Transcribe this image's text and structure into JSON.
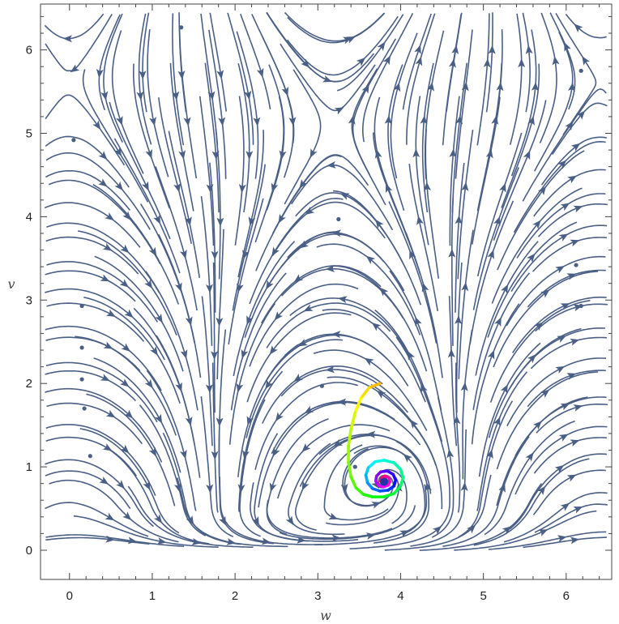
{
  "chart_data": {
    "type": "streamplot",
    "title": "",
    "xlabel": "w",
    "ylabel": "v",
    "xlim": [
      -0.35,
      6.55
    ],
    "ylim": [
      -0.35,
      6.55
    ],
    "xticks": [
      "0",
      "1",
      "2",
      "3",
      "4",
      "5",
      "6"
    ],
    "yticks": [
      "0",
      "1",
      "2",
      "3",
      "4",
      "5",
      "6"
    ],
    "grid": false,
    "frame": true,
    "stream_color": "#4a5f86",
    "equilibrium": [
      3.8,
      0.82
    ],
    "trajectory": {
      "start": [
        3.75,
        2.0
      ],
      "coloring": "rainbow-hue",
      "points": [
        [
          3.75,
          2.0
        ],
        [
          3.62,
          1.95
        ],
        [
          3.52,
          1.82
        ],
        [
          3.45,
          1.65
        ],
        [
          3.4,
          1.45
        ],
        [
          3.37,
          1.25
        ],
        [
          3.37,
          1.05
        ],
        [
          3.4,
          0.88
        ],
        [
          3.46,
          0.75
        ],
        [
          3.55,
          0.67
        ],
        [
          3.66,
          0.64
        ],
        [
          3.8,
          0.64
        ],
        [
          3.92,
          0.68
        ],
        [
          4.0,
          0.77
        ],
        [
          4.03,
          0.87
        ],
        [
          4.0,
          0.97
        ],
        [
          3.92,
          1.05
        ],
        [
          3.8,
          1.08
        ],
        [
          3.69,
          1.06
        ],
        [
          3.61,
          0.99
        ],
        [
          3.58,
          0.9
        ],
        [
          3.6,
          0.81
        ],
        [
          3.66,
          0.74
        ],
        [
          3.75,
          0.71
        ],
        [
          3.85,
          0.72
        ],
        [
          3.92,
          0.77
        ],
        [
          3.94,
          0.84
        ],
        [
          3.91,
          0.91
        ],
        [
          3.84,
          0.95
        ],
        [
          3.76,
          0.94
        ],
        [
          3.71,
          0.89
        ],
        [
          3.7,
          0.83
        ],
        [
          3.73,
          0.78
        ],
        [
          3.79,
          0.76
        ],
        [
          3.85,
          0.78
        ],
        [
          3.87,
          0.82
        ],
        [
          3.86,
          0.87
        ],
        [
          3.81,
          0.89
        ],
        [
          3.77,
          0.87
        ],
        [
          3.76,
          0.83
        ],
        [
          3.78,
          0.8
        ],
        [
          3.81,
          0.8
        ],
        [
          3.82,
          0.83
        ],
        [
          3.8,
          0.84
        ]
      ]
    },
    "stream_dots": [
      [
        1.35,
        6.27
      ],
      [
        0.05,
        4.92
      ],
      [
        0.15,
        2.93
      ],
      [
        0.15,
        2.43
      ],
      [
        0.15,
        2.05
      ],
      [
        0.18,
        1.7
      ],
      [
        0.25,
        1.13
      ],
      [
        3.25,
        3.97
      ],
      [
        3.05,
        1.97
      ],
      [
        3.45,
        1.0
      ],
      [
        6.18,
        5.75
      ],
      [
        6.12,
        3.42
      ],
      [
        6.18,
        2.93
      ]
    ]
  }
}
